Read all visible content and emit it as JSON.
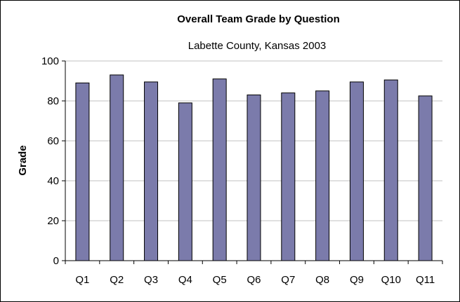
{
  "chart_data": {
    "type": "bar",
    "title": "Overall Team Grade by Question",
    "subtitle": "Labette County, Kansas 2003",
    "xlabel": "",
    "ylabel": "Grade",
    "categories": [
      "Q1",
      "Q2",
      "Q3",
      "Q4",
      "Q5",
      "Q6",
      "Q7",
      "Q8",
      "Q9",
      "Q10",
      "Q11"
    ],
    "values": [
      89,
      93,
      89.5,
      79,
      91,
      83,
      84,
      85,
      89.5,
      90.5,
      82.5
    ],
    "ylim": [
      0,
      100
    ],
    "yticks": [
      "0",
      "20",
      "40",
      "60",
      "80",
      "100"
    ],
    "grid": true,
    "legend": "none",
    "colors": {
      "bar": "#7b7bab",
      "bar_border": "#000000",
      "grid": "#c0c0c0"
    }
  }
}
